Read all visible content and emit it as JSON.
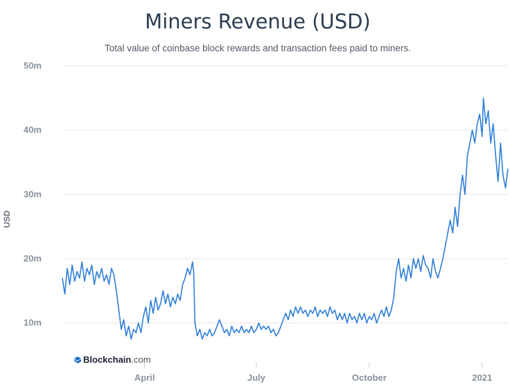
{
  "header": {
    "title": "Miners Revenue (USD)",
    "subtitle": "Total value of coinbase block rewards and transaction fees paid to miners."
  },
  "watermark": {
    "brand": "Blockchain",
    "suffix": ".com"
  },
  "colors": {
    "line": "#2f7ed8",
    "grid": "#e6e6e6",
    "axis_text": "#8a929c",
    "title": "#2c3e50"
  },
  "chart_data": {
    "type": "line",
    "title": "Miners Revenue (USD)",
    "subtitle": "Total value of coinbase block rewards and transaction fees paid to miners.",
    "xlabel": "",
    "ylabel": "USD",
    "ylim": [
      5,
      50
    ],
    "y_ticks": [
      {
        "value": 10,
        "label": "10m"
      },
      {
        "value": 20,
        "label": "20m"
      },
      {
        "value": 30,
        "label": "30m"
      },
      {
        "value": 40,
        "label": "40m"
      },
      {
        "value": 50,
        "label": "50m"
      }
    ],
    "x_ticks": [
      {
        "value": "2020-04-01",
        "label": "April"
      },
      {
        "value": "2020-07-01",
        "label": "July"
      },
      {
        "value": "2020-10-01",
        "label": "October"
      },
      {
        "value": "2021-01-01",
        "label": "2021"
      }
    ],
    "xlim": [
      "2020-01-25",
      "2021-01-22"
    ],
    "grid": true,
    "unit": "millions USD",
    "series": [
      {
        "values": [
          [
            "2020-01-25",
            17.0
          ],
          [
            "2020-01-27",
            14.5
          ],
          [
            "2020-01-29",
            18.5
          ],
          [
            "2020-01-31",
            16.0
          ],
          [
            "2020-02-02",
            19.0
          ],
          [
            "2020-02-04",
            16.5
          ],
          [
            "2020-02-06",
            18.0
          ],
          [
            "2020-02-08",
            17.0
          ],
          [
            "2020-02-10",
            19.5
          ],
          [
            "2020-02-12",
            16.5
          ],
          [
            "2020-02-14",
            18.5
          ],
          [
            "2020-02-16",
            17.5
          ],
          [
            "2020-02-18",
            19.0
          ],
          [
            "2020-02-20",
            16.0
          ],
          [
            "2020-02-22",
            18.0
          ],
          [
            "2020-02-24",
            17.0
          ],
          [
            "2020-02-26",
            18.5
          ],
          [
            "2020-02-28",
            16.5
          ],
          [
            "2020-03-01",
            17.5
          ],
          [
            "2020-03-03",
            16.0
          ],
          [
            "2020-03-05",
            18.5
          ],
          [
            "2020-03-07",
            17.5
          ],
          [
            "2020-03-09",
            15.0
          ],
          [
            "2020-03-11",
            12.0
          ],
          [
            "2020-03-13",
            9.0
          ],
          [
            "2020-03-15",
            10.5
          ],
          [
            "2020-03-17",
            8.0
          ],
          [
            "2020-03-19",
            9.5
          ],
          [
            "2020-03-21",
            7.5
          ],
          [
            "2020-03-23",
            9.0
          ],
          [
            "2020-03-25",
            8.5
          ],
          [
            "2020-03-27",
            10.0
          ],
          [
            "2020-03-29",
            8.5
          ],
          [
            "2020-03-31",
            11.0
          ],
          [
            "2020-04-02",
            12.5
          ],
          [
            "2020-04-04",
            10.0
          ],
          [
            "2020-04-06",
            13.5
          ],
          [
            "2020-04-08",
            11.5
          ],
          [
            "2020-04-10",
            14.0
          ],
          [
            "2020-04-12",
            12.0
          ],
          [
            "2020-04-14",
            13.0
          ],
          [
            "2020-04-16",
            15.0
          ],
          [
            "2020-04-18",
            13.0
          ],
          [
            "2020-04-20",
            14.5
          ],
          [
            "2020-04-22",
            12.5
          ],
          [
            "2020-04-24",
            14.0
          ],
          [
            "2020-04-26",
            13.0
          ],
          [
            "2020-04-28",
            14.5
          ],
          [
            "2020-04-30",
            13.5
          ],
          [
            "2020-05-02",
            16.0
          ],
          [
            "2020-05-04",
            17.0
          ],
          [
            "2020-05-06",
            18.5
          ],
          [
            "2020-05-08",
            17.5
          ],
          [
            "2020-05-10",
            19.5
          ],
          [
            "2020-05-11",
            18.0
          ],
          [
            "2020-05-12",
            10.0
          ],
          [
            "2020-05-14",
            8.0
          ],
          [
            "2020-05-16",
            9.0
          ],
          [
            "2020-05-18",
            7.5
          ],
          [
            "2020-05-20",
            8.5
          ],
          [
            "2020-05-22",
            8.0
          ],
          [
            "2020-05-24",
            9.0
          ],
          [
            "2020-05-26",
            8.0
          ],
          [
            "2020-05-28",
            8.5
          ],
          [
            "2020-05-30",
            9.5
          ],
          [
            "2020-06-01",
            10.5
          ],
          [
            "2020-06-03",
            9.5
          ],
          [
            "2020-06-05",
            8.5
          ],
          [
            "2020-06-07",
            9.0
          ],
          [
            "2020-06-09",
            8.0
          ],
          [
            "2020-06-11",
            9.5
          ],
          [
            "2020-06-13",
            8.5
          ],
          [
            "2020-06-15",
            9.0
          ],
          [
            "2020-06-17",
            8.5
          ],
          [
            "2020-06-19",
            9.5
          ],
          [
            "2020-06-21",
            8.5
          ],
          [
            "2020-06-23",
            9.0
          ],
          [
            "2020-06-25",
            8.5
          ],
          [
            "2020-06-27",
            9.5
          ],
          [
            "2020-06-29",
            8.5
          ],
          [
            "2020-07-01",
            9.0
          ],
          [
            "2020-07-03",
            10.0
          ],
          [
            "2020-07-05",
            9.0
          ],
          [
            "2020-07-07",
            9.5
          ],
          [
            "2020-07-09",
            9.0
          ],
          [
            "2020-07-11",
            9.5
          ],
          [
            "2020-07-13",
            8.5
          ],
          [
            "2020-07-15",
            9.0
          ],
          [
            "2020-07-17",
            8.0
          ],
          [
            "2020-07-19",
            8.5
          ],
          [
            "2020-07-21",
            9.5
          ],
          [
            "2020-07-23",
            10.5
          ],
          [
            "2020-07-25",
            11.5
          ],
          [
            "2020-07-27",
            10.5
          ],
          [
            "2020-07-29",
            12.0
          ],
          [
            "2020-07-31",
            11.0
          ],
          [
            "2020-08-02",
            12.5
          ],
          [
            "2020-08-04",
            11.5
          ],
          [
            "2020-08-06",
            12.5
          ],
          [
            "2020-08-08",
            11.5
          ],
          [
            "2020-08-10",
            12.0
          ],
          [
            "2020-08-12",
            11.0
          ],
          [
            "2020-08-14",
            12.0
          ],
          [
            "2020-08-16",
            11.5
          ],
          [
            "2020-08-18",
            12.5
          ],
          [
            "2020-08-20",
            11.0
          ],
          [
            "2020-08-22",
            12.0
          ],
          [
            "2020-08-24",
            11.5
          ],
          [
            "2020-08-26",
            12.0
          ],
          [
            "2020-08-28",
            11.0
          ],
          [
            "2020-08-30",
            12.5
          ],
          [
            "2020-09-01",
            11.5
          ],
          [
            "2020-09-03",
            12.0
          ],
          [
            "2020-09-05",
            10.5
          ],
          [
            "2020-09-07",
            11.5
          ],
          [
            "2020-09-09",
            10.5
          ],
          [
            "2020-09-11",
            11.5
          ],
          [
            "2020-09-13",
            10.0
          ],
          [
            "2020-09-15",
            11.5
          ],
          [
            "2020-09-17",
            10.5
          ],
          [
            "2020-09-19",
            11.0
          ],
          [
            "2020-09-21",
            10.0
          ],
          [
            "2020-09-23",
            11.5
          ],
          [
            "2020-09-25",
            10.5
          ],
          [
            "2020-09-27",
            11.5
          ],
          [
            "2020-09-29",
            10.0
          ],
          [
            "2020-10-01",
            11.0
          ],
          [
            "2020-10-03",
            10.5
          ],
          [
            "2020-10-05",
            11.5
          ],
          [
            "2020-10-07",
            10.0
          ],
          [
            "2020-10-09",
            11.0
          ],
          [
            "2020-10-11",
            12.0
          ],
          [
            "2020-10-13",
            11.0
          ],
          [
            "2020-10-15",
            12.5
          ],
          [
            "2020-10-17",
            11.0
          ],
          [
            "2020-10-19",
            12.0
          ],
          [
            "2020-10-21",
            14.0
          ],
          [
            "2020-10-23",
            18.0
          ],
          [
            "2020-10-25",
            20.0
          ],
          [
            "2020-10-27",
            17.0
          ],
          [
            "2020-10-29",
            18.5
          ],
          [
            "2020-10-31",
            16.5
          ],
          [
            "2020-11-02",
            19.0
          ],
          [
            "2020-11-04",
            17.0
          ],
          [
            "2020-11-06",
            20.0
          ],
          [
            "2020-11-08",
            18.5
          ],
          [
            "2020-11-10",
            20.0
          ],
          [
            "2020-11-12",
            18.0
          ],
          [
            "2020-11-14",
            20.5
          ],
          [
            "2020-11-16",
            19.0
          ],
          [
            "2020-11-18",
            18.5
          ],
          [
            "2020-11-20",
            17.0
          ],
          [
            "2020-11-22",
            20.0
          ],
          [
            "2020-11-24",
            18.0
          ],
          [
            "2020-11-26",
            17.0
          ],
          [
            "2020-11-28",
            18.5
          ],
          [
            "2020-11-30",
            20.0
          ],
          [
            "2020-12-02",
            22.0
          ],
          [
            "2020-12-04",
            24.0
          ],
          [
            "2020-12-06",
            26.0
          ],
          [
            "2020-12-08",
            24.0
          ],
          [
            "2020-12-10",
            28.0
          ],
          [
            "2020-12-12",
            25.0
          ],
          [
            "2020-12-14",
            30.0
          ],
          [
            "2020-12-16",
            33.0
          ],
          [
            "2020-12-18",
            30.0
          ],
          [
            "2020-12-20",
            36.0
          ],
          [
            "2020-12-22",
            38.0
          ],
          [
            "2020-12-24",
            40.0
          ],
          [
            "2020-12-26",
            38.0
          ],
          [
            "2020-12-28",
            41.0
          ],
          [
            "2020-12-30",
            42.5
          ],
          [
            "2021-01-01",
            39.0
          ],
          [
            "2021-01-02",
            45.0
          ],
          [
            "2021-01-04",
            41.0
          ],
          [
            "2021-01-06",
            43.0
          ],
          [
            "2021-01-08",
            38.0
          ],
          [
            "2021-01-10",
            41.0
          ],
          [
            "2021-01-12",
            36.0
          ],
          [
            "2021-01-14",
            32.0
          ],
          [
            "2021-01-16",
            38.0
          ],
          [
            "2021-01-18",
            33.0
          ],
          [
            "2021-01-20",
            31.0
          ],
          [
            "2021-01-22",
            34.0
          ]
        ]
      }
    ]
  }
}
